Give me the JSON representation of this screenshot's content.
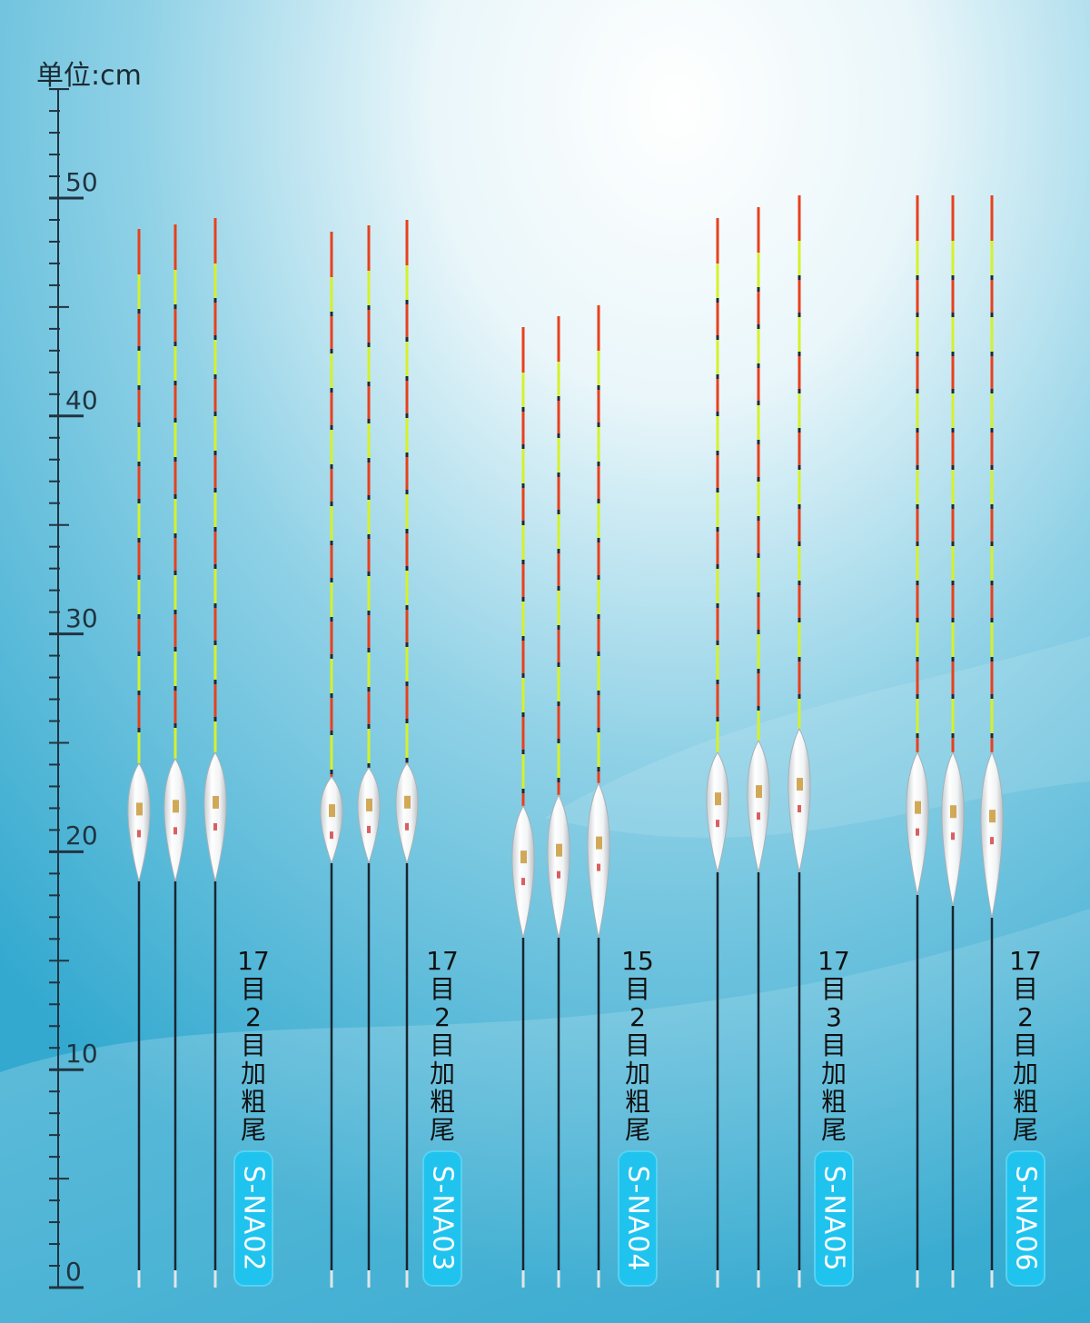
{
  "unit_label": "单位:cm",
  "scale": {
    "labels": [
      "0",
      "10",
      "20",
      "30",
      "40",
      "50"
    ]
  },
  "groups": [
    {
      "model": "S-NA02",
      "spec": [
        "17",
        "目",
        "2",
        "目",
        "加",
        "粗",
        "尾"
      ]
    },
    {
      "model": "S-NA03",
      "spec": [
        "17",
        "目",
        "2",
        "目",
        "加",
        "粗",
        "尾"
      ]
    },
    {
      "model": "S-NA04",
      "spec": [
        "15",
        "目",
        "2",
        "目",
        "加",
        "粗",
        "尾"
      ]
    },
    {
      "model": "S-NA05",
      "spec": [
        "17",
        "目",
        "3",
        "目",
        "加",
        "粗",
        "尾"
      ]
    },
    {
      "model": "S-NA06",
      "spec": [
        "17",
        "目",
        "2",
        "目",
        "加",
        "粗",
        "尾"
      ]
    }
  ]
}
